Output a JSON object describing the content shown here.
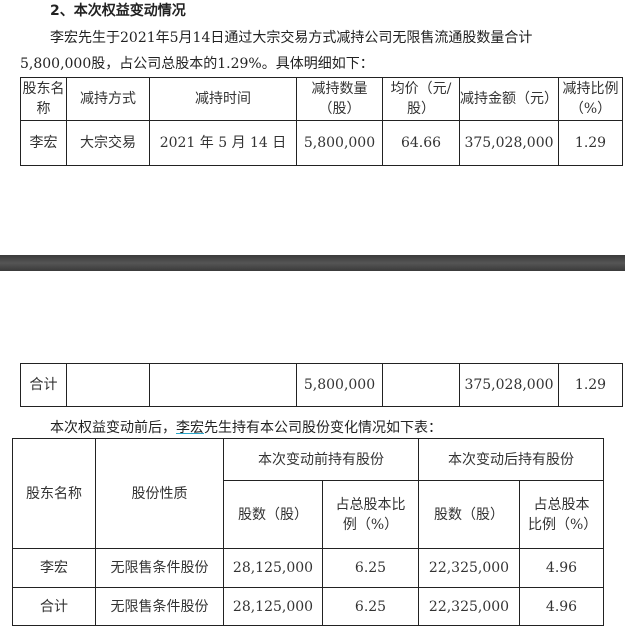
{
  "section_title": "2、本次权益变动情况",
  "intro_line1": "李宏先生于2021年5月14日通过大宗交易方式减持公司无限售流通股数量合计",
  "intro_line2": "5,800,000股，占公司总股本的1.29%。具体明细如下：",
  "table1": {
    "headers": [
      "股东名称",
      "减持方式",
      "减持时间",
      "减持数量（股）",
      "均价（元/股）",
      "减持金额（元）",
      "减持比例（%）"
    ],
    "rows": [
      [
        "李宏",
        "大宗交易",
        "2021 年 5 月 14 日",
        "5,800,000",
        "64.66",
        "375,028,000",
        "1.29"
      ]
    ],
    "total": [
      "合计",
      "",
      "",
      "5,800,000",
      "",
      "375,028,000",
      "1.29"
    ]
  },
  "para2": {
    "before": "本次权益变动前后，",
    "name": "李宏",
    "after": "先生持有本公司股份变化情况如下表："
  },
  "table2": {
    "h_holder": "股东名称",
    "h_nature": "股份性质",
    "h_before": "本次变动前持有股份",
    "h_after": "本次变动后持有股份",
    "h_shares": "股数（股）",
    "h_ratio": "占总股本比例（%）",
    "rows": [
      [
        "李宏",
        "无限售条件股份",
        "28,125,000",
        "6.25",
        "22,325,000",
        "4.96"
      ],
      [
        "合计",
        "无限售条件股份",
        "28,125,000",
        "6.25",
        "22,325,000",
        "4.96"
      ]
    ]
  }
}
